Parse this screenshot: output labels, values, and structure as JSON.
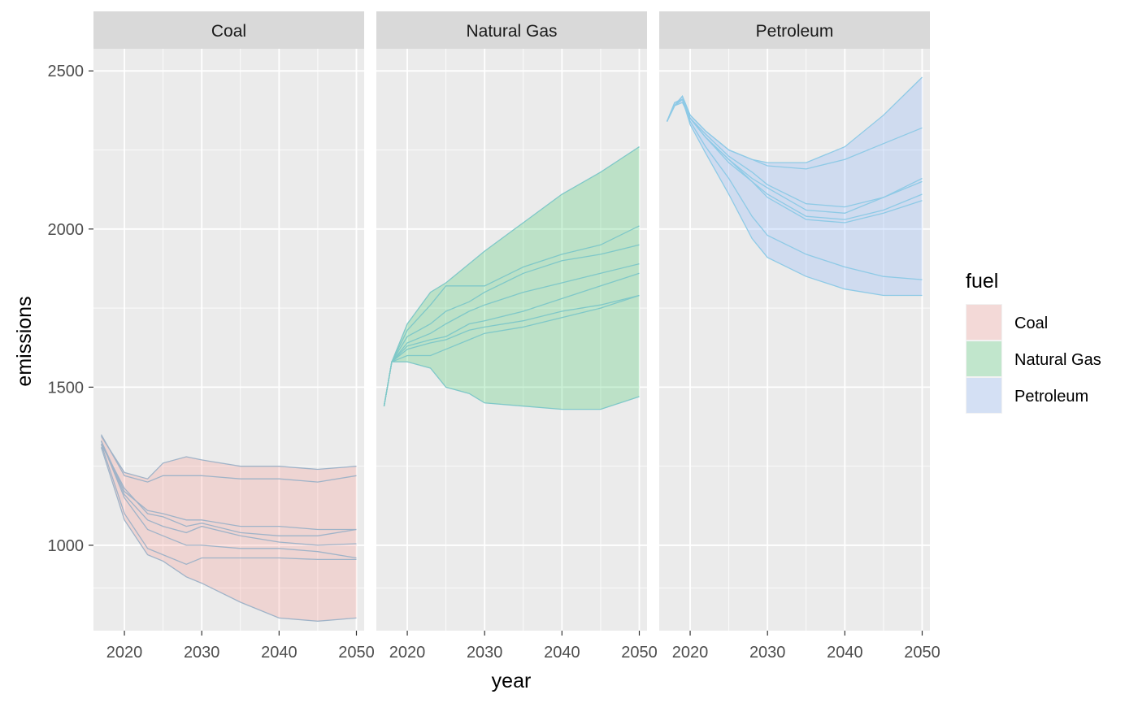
{
  "chart_data": {
    "type": "area",
    "xlabel": "year",
    "ylabel": "emissions",
    "xlim": [
      2016,
      2051
    ],
    "ylim": [
      730,
      2570
    ],
    "x_ticks": [
      2020,
      2030,
      2040,
      2050
    ],
    "y_ticks": [
      1000,
      1500,
      2000,
      2500
    ],
    "x_tick_labels": [
      "2020",
      "2030",
      "2040",
      "2050"
    ],
    "y_tick_labels": [
      "1000",
      "1500",
      "2000",
      "2500"
    ],
    "grid": true,
    "legend": {
      "title": "fuel",
      "position": "right",
      "entries": [
        "Coal",
        "Natural Gas",
        "Petroleum"
      ]
    },
    "colors": {
      "Coal": {
        "fill": "#f8766d",
        "line": "#9fb3c8"
      },
      "Natural Gas": {
        "fill": "#00ba38",
        "line": "#7fc8c8"
      },
      "Petroleum": {
        "fill": "#619cff",
        "line": "#8ecae6"
      }
    },
    "facets": [
      {
        "name": "Coal",
        "x": [
          2017,
          2020,
          2023,
          2025,
          2028,
          2030,
          2035,
          2040,
          2045,
          2050
        ],
        "series": [
          [
            1330,
            1150,
            1050,
            1030,
            1000,
            1000,
            990,
            990,
            980,
            960
          ],
          [
            1320,
            1180,
            1100,
            1090,
            1060,
            1070,
            1040,
            1030,
            1030,
            1050
          ],
          [
            1330,
            1160,
            1080,
            1060,
            1040,
            1060,
            1030,
            1010,
            1000,
            1005
          ],
          [
            1320,
            1100,
            990,
            970,
            940,
            960,
            960,
            960,
            955,
            955
          ],
          [
            1310,
            1080,
            970,
            950,
            900,
            880,
            820,
            770,
            760,
            770
          ],
          [
            1350,
            1220,
            1200,
            1220,
            1220,
            1220,
            1210,
            1210,
            1200,
            1220
          ],
          [
            1345,
            1230,
            1210,
            1260,
            1280,
            1270,
            1250,
            1250,
            1240,
            1250
          ],
          [
            1330,
            1170,
            1110,
            1100,
            1080,
            1080,
            1060,
            1060,
            1050,
            1050
          ]
        ]
      },
      {
        "name": "Natural Gas",
        "x": [
          2017,
          2018,
          2020,
          2023,
          2025,
          2028,
          2030,
          2035,
          2040,
          2045,
          2050
        ],
        "series": [
          [
            1440,
            1580,
            1580,
            1560,
            1500,
            1480,
            1450,
            1440,
            1430,
            1430,
            1470
          ],
          [
            1440,
            1580,
            1600,
            1600,
            1620,
            1650,
            1670,
            1690,
            1720,
            1750,
            1790
          ],
          [
            1440,
            1580,
            1620,
            1640,
            1650,
            1680,
            1690,
            1710,
            1740,
            1760,
            1790
          ],
          [
            1440,
            1580,
            1630,
            1650,
            1660,
            1700,
            1710,
            1740,
            1780,
            1820,
            1860
          ],
          [
            1440,
            1580,
            1640,
            1670,
            1700,
            1740,
            1760,
            1800,
            1830,
            1860,
            1890
          ],
          [
            1440,
            1580,
            1660,
            1700,
            1740,
            1770,
            1800,
            1860,
            1900,
            1920,
            1950
          ],
          [
            1440,
            1580,
            1680,
            1760,
            1820,
            1820,
            1820,
            1880,
            1920,
            1950,
            2010
          ],
          [
            1440,
            1580,
            1700,
            1800,
            1830,
            1890,
            1930,
            2020,
            2110,
            2180,
            2260
          ]
        ]
      },
      {
        "name": "Petroleum",
        "x": [
          2017,
          2018,
          2019,
          2020,
          2022,
          2025,
          2028,
          2030,
          2035,
          2040,
          2045,
          2050
        ],
        "series": [
          [
            2340,
            2400,
            2410,
            2330,
            2240,
            2110,
            1970,
            1910,
            1850,
            1810,
            1790,
            1790
          ],
          [
            2340,
            2400,
            2410,
            2340,
            2260,
            2160,
            2040,
            1980,
            1920,
            1880,
            1850,
            1840
          ],
          [
            2340,
            2390,
            2400,
            2350,
            2290,
            2220,
            2150,
            2100,
            2030,
            2020,
            2050,
            2090
          ],
          [
            2340,
            2390,
            2410,
            2350,
            2290,
            2210,
            2150,
            2110,
            2040,
            2030,
            2060,
            2110
          ],
          [
            2340,
            2390,
            2410,
            2350,
            2290,
            2220,
            2160,
            2130,
            2060,
            2050,
            2100,
            2150
          ],
          [
            2340,
            2390,
            2420,
            2350,
            2300,
            2230,
            2180,
            2140,
            2080,
            2070,
            2100,
            2160
          ],
          [
            2340,
            2390,
            2420,
            2360,
            2310,
            2250,
            2220,
            2210,
            2210,
            2260,
            2360,
            2480
          ],
          [
            2340,
            2390,
            2420,
            2360,
            2310,
            2250,
            2220,
            2200,
            2190,
            2220,
            2270,
            2320
          ]
        ]
      }
    ]
  }
}
